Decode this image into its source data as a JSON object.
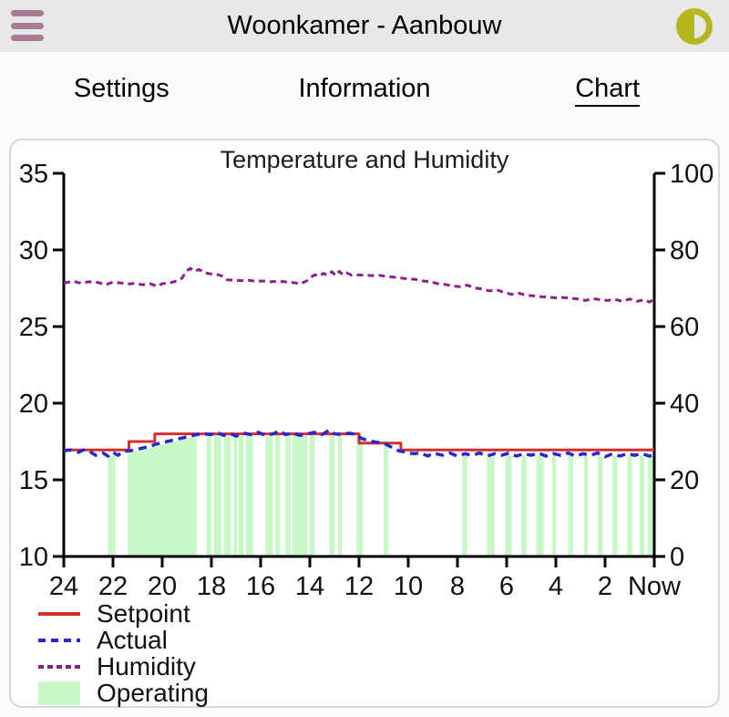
{
  "header": {
    "title": "Woonkamer - Aanbouw",
    "menu_icon": "hamburger-icon",
    "theme_icon": "contrast-icon",
    "bar_color": "#e9e8e8",
    "hamburger_color": "#a87b92",
    "contrast_icon_color": "#b5b71f"
  },
  "tabs": [
    {
      "label": "Settings",
      "active": false
    },
    {
      "label": "Information",
      "active": false
    },
    {
      "label": "Chart",
      "active": true
    }
  ],
  "chart_data": {
    "type": "line",
    "title": "Temperature and Humidity",
    "x_axis": {
      "labels": [
        "24",
        "22",
        "20",
        "18",
        "16",
        "14",
        "12",
        "10",
        "8",
        "6",
        "4",
        "2",
        "Now"
      ],
      "hours_span": 24,
      "unit": "hours ago"
    },
    "y_left": {
      "min": 10,
      "max": 35,
      "label_values": [
        35,
        30,
        25,
        20,
        15,
        10
      ],
      "role": "temperature"
    },
    "y_right": {
      "min": 0,
      "max": 100,
      "label_values": [
        100,
        80,
        60,
        40,
        20,
        0
      ],
      "role": "humidity"
    },
    "legend": [
      "Setpoint",
      "Actual",
      "Humidity",
      "Operating"
    ],
    "series": [
      {
        "name": "Setpoint",
        "color": "#d32f2f",
        "style": "solid",
        "width": 3,
        "axis": "left",
        "points": [
          [
            24,
            16.95
          ],
          [
            21.35,
            16.95
          ],
          [
            21.35,
            17.5
          ],
          [
            20.3,
            17.5
          ],
          [
            20.3,
            18.0
          ],
          [
            12.0,
            18.0
          ],
          [
            12.0,
            17.4
          ],
          [
            10.3,
            17.4
          ],
          [
            10.3,
            16.95
          ],
          [
            0,
            16.95
          ]
        ]
      },
      {
        "name": "Actual",
        "color": "#2727cd",
        "style": "dashed",
        "dash": "9 6",
        "width": 3.5,
        "axis": "left",
        "points": [
          [
            24,
            16.9
          ],
          [
            23.7,
            16.95
          ],
          [
            23.4,
            16.8
          ],
          [
            23.2,
            16.95
          ],
          [
            23,
            16.9
          ],
          [
            22.7,
            16.6
          ],
          [
            22.4,
            16.75
          ],
          [
            22.2,
            16.55
          ],
          [
            22,
            16.8
          ],
          [
            21.8,
            16.6
          ],
          [
            21.6,
            16.85
          ],
          [
            21.3,
            16.9
          ],
          [
            21,
            17.0
          ],
          [
            20.6,
            17.15
          ],
          [
            20.2,
            17.35
          ],
          [
            19.8,
            17.5
          ],
          [
            19.4,
            17.65
          ],
          [
            19,
            17.8
          ],
          [
            18.6,
            17.95
          ],
          [
            18.3,
            18.0
          ],
          [
            18,
            17.95
          ],
          [
            17.8,
            18.1
          ],
          [
            17.5,
            17.9
          ],
          [
            17.2,
            18.0
          ],
          [
            17,
            17.85
          ],
          [
            16.7,
            18.05
          ],
          [
            16.4,
            17.95
          ],
          [
            16.1,
            18.1
          ],
          [
            15.8,
            17.9
          ],
          [
            15.5,
            18.0
          ],
          [
            15.2,
            18.2
          ],
          [
            15,
            17.95
          ],
          [
            14.7,
            18.05
          ],
          [
            14.4,
            17.9
          ],
          [
            14.1,
            18.0
          ],
          [
            13.8,
            18.1
          ],
          [
            13.5,
            17.95
          ],
          [
            13.2,
            18.25
          ],
          [
            13,
            18.0
          ],
          [
            12.7,
            17.95
          ],
          [
            12.4,
            18.05
          ],
          [
            12.1,
            17.95
          ],
          [
            11.9,
            17.7
          ],
          [
            11.6,
            17.55
          ],
          [
            11.3,
            17.45
          ],
          [
            11,
            17.4
          ],
          [
            10.7,
            17.15
          ],
          [
            10.4,
            16.9
          ],
          [
            10.1,
            16.8
          ],
          [
            9.8,
            16.7
          ],
          [
            9.5,
            16.75
          ],
          [
            9.2,
            16.55
          ],
          [
            9,
            16.75
          ],
          [
            8.6,
            16.6
          ],
          [
            8.3,
            16.75
          ],
          [
            8,
            16.55
          ],
          [
            7.7,
            16.7
          ],
          [
            7.4,
            16.6
          ],
          [
            7.1,
            16.75
          ],
          [
            6.8,
            16.55
          ],
          [
            6.5,
            16.7
          ],
          [
            6.2,
            16.6
          ],
          [
            5.9,
            16.75
          ],
          [
            5.6,
            16.55
          ],
          [
            5.3,
            16.7
          ],
          [
            5,
            16.6
          ],
          [
            4.7,
            16.75
          ],
          [
            4.4,
            16.55
          ],
          [
            4.1,
            16.7
          ],
          [
            3.8,
            16.6
          ],
          [
            3.5,
            16.75
          ],
          [
            3.2,
            16.55
          ],
          [
            2.9,
            16.7
          ],
          [
            2.6,
            16.6
          ],
          [
            2.3,
            16.75
          ],
          [
            2,
            16.5
          ],
          [
            1.7,
            16.7
          ],
          [
            1.4,
            16.55
          ],
          [
            1.1,
            16.7
          ],
          [
            0.8,
            16.6
          ],
          [
            0.5,
            16.7
          ],
          [
            0.2,
            16.55
          ],
          [
            0,
            16.65
          ]
        ]
      },
      {
        "name": "Humidity",
        "color": "#8b1f8b",
        "style": "dashed",
        "dash": "7 5",
        "width": 3,
        "axis": "right",
        "points": [
          [
            24,
            71.4
          ],
          [
            23.6,
            71.8
          ],
          [
            23.3,
            71.3
          ],
          [
            23,
            71.7
          ],
          [
            22.6,
            71.5
          ],
          [
            22.3,
            70.9
          ],
          [
            22,
            71.6
          ],
          [
            21.7,
            71.4
          ],
          [
            21.4,
            71.1
          ],
          [
            21.1,
            71.3
          ],
          [
            20.8,
            70.9
          ],
          [
            20.5,
            71.2
          ],
          [
            20.2,
            70.5
          ],
          [
            20,
            71.2
          ],
          [
            19.7,
            71.4
          ],
          [
            19.4,
            71.9
          ],
          [
            19.2,
            72.6
          ],
          [
            19,
            74.6
          ],
          [
            18.85,
            75.2
          ],
          [
            18.7,
            74.4
          ],
          [
            18.5,
            74.9
          ],
          [
            18.3,
            74.1
          ],
          [
            18.1,
            73.8
          ],
          [
            17.9,
            73.7
          ],
          [
            17.7,
            73.5
          ],
          [
            17.5,
            73.0
          ],
          [
            17.35,
            72.2
          ],
          [
            17.1,
            72.1
          ],
          [
            16.8,
            72.0
          ],
          [
            16.5,
            72.1
          ],
          [
            16.2,
            71.8
          ],
          [
            15.9,
            71.9
          ],
          [
            15.6,
            71.7
          ],
          [
            15.3,
            71.8
          ],
          [
            15,
            71.7
          ],
          [
            14.7,
            71.5
          ],
          [
            14.4,
            71.2
          ],
          [
            14.15,
            71.8
          ],
          [
            13.95,
            72.9
          ],
          [
            13.8,
            73.5
          ],
          [
            13.6,
            73.2
          ],
          [
            13.45,
            73.9
          ],
          [
            13.3,
            73.4
          ],
          [
            13.1,
            74.3
          ],
          [
            12.95,
            73.3
          ],
          [
            12.8,
            74.4
          ],
          [
            12.65,
            73.5
          ],
          [
            12.5,
            74.0
          ],
          [
            12.3,
            73.4
          ],
          [
            12.1,
            73.5
          ],
          [
            11.8,
            73.4
          ],
          [
            11.5,
            73.3
          ],
          [
            11.2,
            73.4
          ],
          [
            10.9,
            73.1
          ],
          [
            10.6,
            72.9
          ],
          [
            10.3,
            72.7
          ],
          [
            10,
            72.4
          ],
          [
            9.7,
            72.3
          ],
          [
            9.4,
            71.9
          ],
          [
            9.1,
            71.7
          ],
          [
            8.8,
            71.2
          ],
          [
            8.5,
            71.0
          ],
          [
            8.2,
            70.6
          ],
          [
            7.9,
            70.4
          ],
          [
            7.6,
            70.8
          ],
          [
            7.3,
            70.1
          ],
          [
            7,
            69.8
          ],
          [
            6.7,
            69.3
          ],
          [
            6.4,
            69.6
          ],
          [
            6.1,
            68.9
          ],
          [
            5.8,
            68.4
          ],
          [
            5.5,
            68.7
          ],
          [
            5.2,
            68.2
          ],
          [
            4.9,
            68.0
          ],
          [
            4.6,
            67.8
          ],
          [
            4.3,
            67.7
          ],
          [
            4,
            67.5
          ],
          [
            3.7,
            67.6
          ],
          [
            3.4,
            67.4
          ],
          [
            3.1,
            67.2
          ],
          [
            2.8,
            66.8
          ],
          [
            2.5,
            67.3
          ],
          [
            2.2,
            67.0
          ],
          [
            1.9,
            66.8
          ],
          [
            1.6,
            67.1
          ],
          [
            1.3,
            66.6
          ],
          [
            1,
            67.2
          ],
          [
            0.7,
            66.6
          ],
          [
            0.4,
            67.0
          ],
          [
            0.2,
            66.4
          ],
          [
            0,
            67.1
          ]
        ]
      }
    ],
    "operating": {
      "name": "Operating",
      "color": "#c8f8c8",
      "bands": [
        [
          22.2,
          21.9
        ],
        [
          21.4,
          18.6
        ],
        [
          18.2,
          18.0
        ],
        [
          17.9,
          17.6
        ],
        [
          17.5,
          17.2
        ],
        [
          17.1,
          16.95
        ],
        [
          16.9,
          16.7
        ],
        [
          16.6,
          16.3
        ],
        [
          15.8,
          15.5
        ],
        [
          15.4,
          15.2
        ],
        [
          15.0,
          14.8
        ],
        [
          14.7,
          14.1
        ],
        [
          14.0,
          13.8
        ],
        [
          13.2,
          13.0
        ],
        [
          12.85,
          12.7
        ],
        [
          12.1,
          11.85
        ],
        [
          11.0,
          10.8
        ],
        [
          7.8,
          7.6
        ],
        [
          6.8,
          6.5
        ],
        [
          6.05,
          5.8
        ],
        [
          5.4,
          5.2
        ],
        [
          4.8,
          4.5
        ],
        [
          4.15,
          4.0
        ],
        [
          3.5,
          3.3
        ],
        [
          2.85,
          2.7
        ],
        [
          2.3,
          2.1
        ],
        [
          1.7,
          1.5
        ],
        [
          1.1,
          0.9
        ],
        [
          0.6,
          0.4
        ],
        [
          0.25,
          0.05
        ]
      ]
    }
  }
}
